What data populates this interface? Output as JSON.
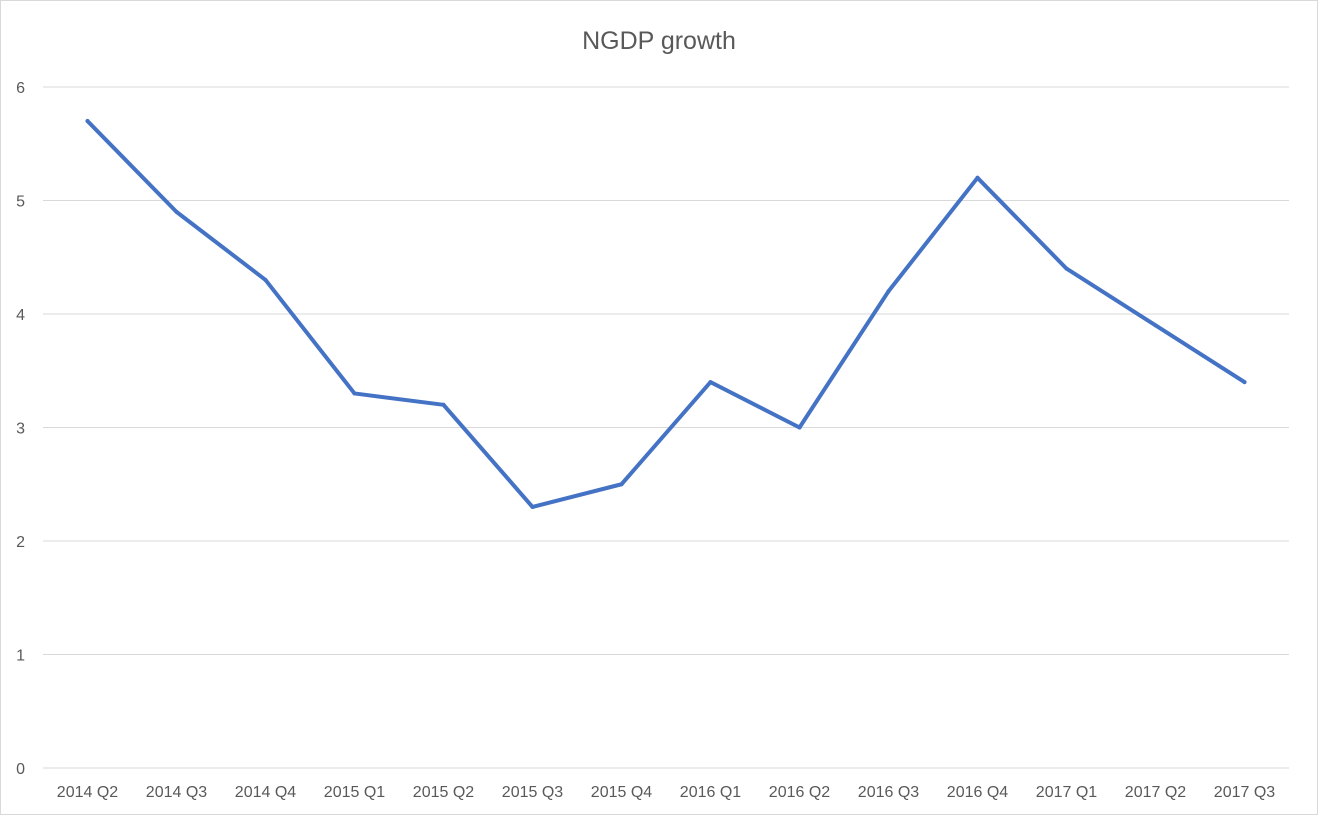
{
  "chart_data": {
    "type": "line",
    "title": "NGDP growth",
    "xlabel": "",
    "ylabel": "",
    "categories": [
      "2014 Q2",
      "2014 Q3",
      "2014 Q4",
      "2015 Q1",
      "2015 Q2",
      "2015 Q3",
      "2015 Q4",
      "2016 Q1",
      "2016 Q2",
      "2016 Q3",
      "2016 Q4",
      "2017 Q1",
      "2017 Q2",
      "2017 Q3"
    ],
    "series": [
      {
        "values": [
          5.7,
          4.9,
          4.3,
          3.3,
          3.2,
          2.3,
          2.5,
          3.4,
          3.0,
          4.2,
          5.2,
          4.4,
          3.9,
          3.4
        ],
        "color": "#4472c4"
      }
    ],
    "ylim": [
      0,
      6
    ],
    "yticks": [
      0,
      1,
      2,
      3,
      4,
      5,
      6
    ],
    "grid": true,
    "legend": "none"
  }
}
